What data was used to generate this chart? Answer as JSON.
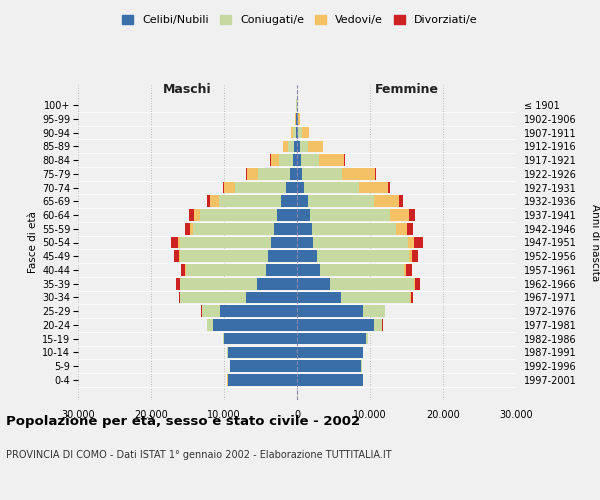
{
  "age_groups": [
    "0-4",
    "5-9",
    "10-14",
    "15-19",
    "20-24",
    "25-29",
    "30-34",
    "35-39",
    "40-44",
    "45-49",
    "50-54",
    "55-59",
    "60-64",
    "65-69",
    "70-74",
    "75-79",
    "80-84",
    "85-89",
    "90-94",
    "95-99",
    "100+"
  ],
  "birth_years": [
    "1997-2001",
    "1992-1996",
    "1987-1991",
    "1982-1986",
    "1977-1981",
    "1972-1976",
    "1967-1971",
    "1962-1966",
    "1957-1961",
    "1952-1956",
    "1947-1951",
    "1942-1946",
    "1937-1941",
    "1932-1936",
    "1927-1931",
    "1922-1926",
    "1917-1921",
    "1912-1916",
    "1907-1911",
    "1902-1906",
    "≤ 1901"
  ],
  "maschi": {
    "celibi": [
      9500,
      9200,
      9500,
      10000,
      11500,
      10500,
      7000,
      5500,
      4200,
      4000,
      3500,
      3200,
      2800,
      2200,
      1500,
      900,
      600,
      400,
      200,
      100,
      50
    ],
    "coniugati": [
      20,
      30,
      50,
      100,
      800,
      2500,
      9000,
      10500,
      11000,
      12000,
      12500,
      11000,
      10500,
      8500,
      7000,
      4500,
      1800,
      900,
      400,
      100,
      50
    ],
    "vedovi": [
      1,
      1,
      2,
      3,
      5,
      10,
      30,
      50,
      80,
      150,
      300,
      500,
      800,
      1200,
      1500,
      1500,
      1200,
      600,
      200,
      50,
      20
    ],
    "divorziati": [
      2,
      3,
      5,
      10,
      30,
      80,
      200,
      500,
      600,
      700,
      900,
      700,
      700,
      400,
      150,
      80,
      50,
      30,
      20,
      10,
      5
    ]
  },
  "femmine": {
    "nubili": [
      9000,
      8800,
      9000,
      9500,
      10500,
      9000,
      6000,
      4500,
      3200,
      2800,
      2200,
      2000,
      1800,
      1500,
      1000,
      700,
      500,
      350,
      200,
      100,
      50
    ],
    "coniugate": [
      30,
      40,
      80,
      200,
      1200,
      3000,
      9500,
      11500,
      11500,
      12500,
      13000,
      11500,
      11000,
      9000,
      7500,
      5500,
      2500,
      1200,
      500,
      100,
      50
    ],
    "vedove": [
      1,
      2,
      3,
      5,
      10,
      20,
      60,
      100,
      200,
      400,
      800,
      1500,
      2500,
      3500,
      4000,
      4500,
      3500,
      2000,
      900,
      200,
      100
    ],
    "divorziate": [
      2,
      3,
      5,
      15,
      50,
      100,
      300,
      700,
      800,
      900,
      1200,
      900,
      900,
      500,
      200,
      100,
      60,
      40,
      20,
      10,
      5
    ]
  },
  "colors": {
    "celibi": "#3a6ea8",
    "coniugati": "#c5d9a0",
    "vedovi": "#f5c165",
    "divorziati": "#cc2222"
  },
  "legend_labels": [
    "Celibi/Nubili",
    "Coniugati/e",
    "Vedovi/e",
    "Divorziati/e"
  ],
  "title": "Popolazione per età, sesso e stato civile - 2002",
  "subtitle": "PROVINCIA DI COMO - Dati ISTAT 1° gennaio 2002 - Elaborazione TUTTITALIA.IT",
  "xlabel_left": "Maschi",
  "xlabel_right": "Femmine",
  "ylabel_left": "Fasce di età",
  "ylabel_right": "Anni di nascita",
  "xlim": 30000,
  "xticks": [
    -30000,
    -20000,
    -10000,
    0,
    10000,
    20000,
    30000
  ],
  "xticklabels": [
    "30.000",
    "20.000",
    "10.000",
    "0",
    "10.000",
    "20.000",
    "30.000"
  ],
  "bg_color": "#f0f0f0",
  "bar_height": 0.85
}
